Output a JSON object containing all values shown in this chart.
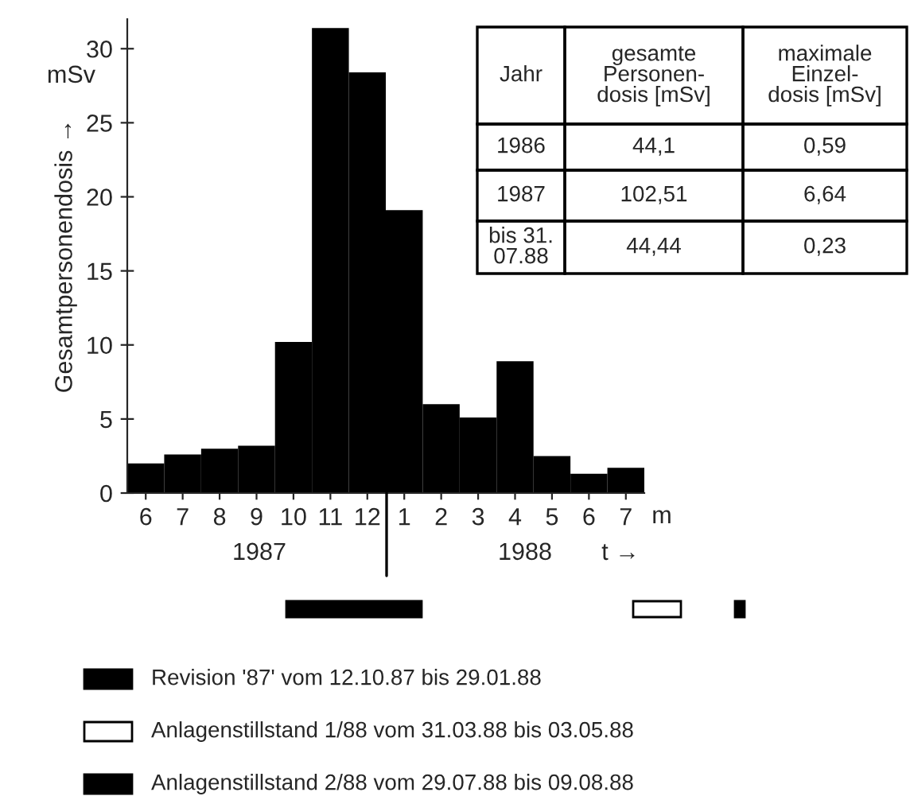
{
  "chart_data": {
    "type": "bar",
    "ylabel": "Gesamtpersonendosis →",
    "categories": [
      "6",
      "7",
      "8",
      "9",
      "10",
      "11",
      "12",
      "1",
      "2",
      "3",
      "4",
      "5",
      "6",
      "7"
    ],
    "values": [
      2.0,
      2.6,
      3.0,
      3.2,
      10.2,
      31.4,
      28.4,
      19.1,
      6.0,
      5.1,
      8.9,
      2.5,
      1.3,
      1.7
    ],
    "color": "#000000",
    "ylim": [
      0,
      32
    ],
    "yticks": [
      0,
      5,
      10,
      15,
      20,
      25,
      30
    ],
    "grid": false,
    "legend": false,
    "annotations": [
      "Jahr",
      "gesamte\nPersonen-\ndosis [mSv]",
      "maximale\nEinzel-\ndosis [mSv]",
      "1986",
      "44,1",
      "0,59",
      "1987",
      "102,51",
      "6,64",
      "bis 31.\n07.88",
      "44,44",
      "0,23",
      "mSv",
      "m",
      "1987",
      "1988",
      "t →",
      "Revision '87' vom 12.10.87 bis 29.01.88",
      "Anlagenstillstand 1/88 vom 31.03.88 bis 03.05.88",
      "Anlagenstillstand 2/88 vom 29.07.88 bis 09.08.88"
    ]
  }
}
